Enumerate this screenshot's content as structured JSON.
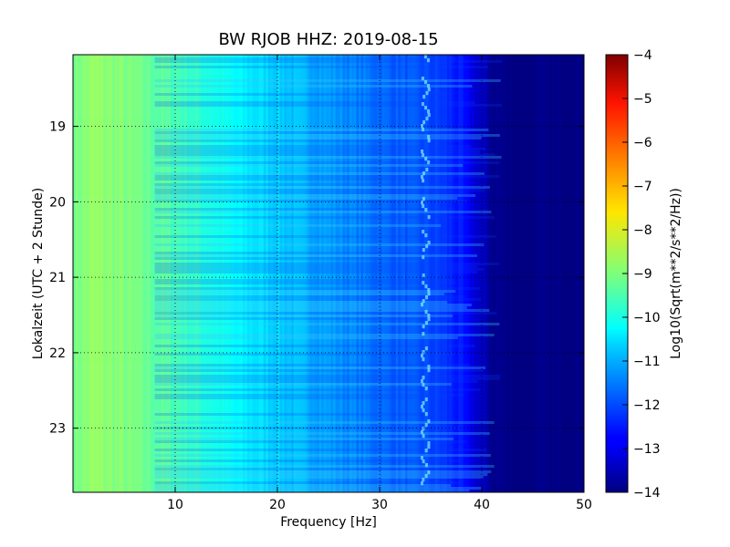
{
  "chart_data": {
    "type": "heatmap",
    "title": "BW RJOB HHZ: 2019-08-15",
    "xlabel": "Frequency [Hz]",
    "ylabel": "Lokalzeit (UTC + 2 Stunde)",
    "xlim": [
      0,
      50
    ],
    "ylim": [
      18.05,
      23.85
    ],
    "xticks": [
      10,
      20,
      30,
      40,
      50
    ],
    "xtick_labels": [
      "10",
      "20",
      "30",
      "40",
      "50"
    ],
    "yticks": [
      19,
      20,
      21,
      22,
      23
    ],
    "ytick_labels": [
      "19",
      "20",
      "21",
      "22",
      "23"
    ],
    "grid": true,
    "colorbar": {
      "label": "Log10(Sqrt(m**2/s**2/Hz))",
      "range": [
        -14,
        -4
      ],
      "ticks": [
        -4,
        -5,
        -6,
        -7,
        -8,
        -9,
        -10,
        -11,
        -12,
        -13,
        -14
      ],
      "tick_labels": [
        "−4",
        "−5",
        "−6",
        "−7",
        "−8",
        "−9",
        "−10",
        "−11",
        "−12",
        "−13",
        "−14"
      ],
      "colormap": "jet"
    },
    "frequency_profile": {
      "x": [
        0,
        2,
        5,
        8,
        10,
        13,
        16,
        20,
        25,
        30,
        34,
        36,
        38,
        39.5,
        41,
        43,
        50
      ],
      "value": [
        -9.1,
        -8.8,
        -9.0,
        -9.3,
        -9.5,
        -9.9,
        -10.3,
        -10.7,
        -11.2,
        -11.7,
        -12.0,
        -12.2,
        -12.6,
        -13.2,
        -13.8,
        -14.0,
        -14.0
      ]
    },
    "spectral_line": {
      "frequency": 34.5
    }
  }
}
